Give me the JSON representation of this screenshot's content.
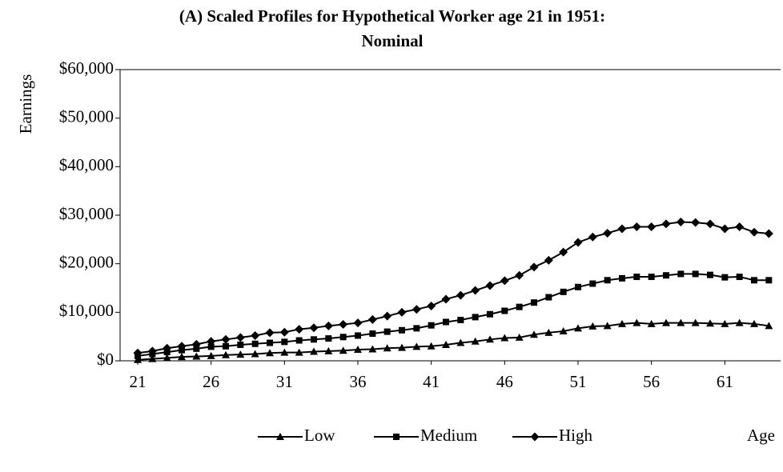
{
  "chart_data": {
    "type": "line",
    "title": "(A) Scaled Profiles for Hypothetical Worker age 21 in 1951:",
    "subtitle": "Nominal",
    "y_label": "Earnings",
    "x_label": "Age",
    "x": [
      21,
      22,
      23,
      24,
      25,
      26,
      27,
      28,
      29,
      30,
      31,
      32,
      33,
      34,
      35,
      36,
      37,
      38,
      39,
      40,
      41,
      42,
      43,
      44,
      45,
      46,
      47,
      48,
      49,
      50,
      51,
      52,
      53,
      54,
      55,
      56,
      57,
      58,
      59,
      60,
      61,
      62,
      63,
      64
    ],
    "series": [
      {
        "name": "Low",
        "color": "#000000",
        "marker": "triangle",
        "values": [
          200,
          400,
          600,
          800,
          900,
          1000,
          1200,
          1300,
          1400,
          1600,
          1700,
          1700,
          1900,
          2000,
          2100,
          2300,
          2400,
          2600,
          2700,
          2900,
          3000,
          3300,
          3700,
          4000,
          4400,
          4700,
          4800,
          5400,
          5800,
          6100,
          6700,
          7100,
          7200,
          7600,
          7800,
          7600,
          7800,
          7800,
          7800,
          7700,
          7600,
          7800,
          7600,
          7200
        ]
      },
      {
        "name": "Medium",
        "color": "#000000",
        "marker": "square",
        "values": [
          1000,
          1400,
          1800,
          2200,
          2500,
          2900,
          3000,
          3300,
          3500,
          3700,
          3900,
          4200,
          4400,
          4600,
          4900,
          5200,
          5600,
          6000,
          6300,
          6700,
          7300,
          8000,
          8400,
          9000,
          9600,
          10300,
          11100,
          12000,
          13100,
          14200,
          15200,
          15900,
          16600,
          17000,
          17300,
          17300,
          17600,
          17900,
          17900,
          17700,
          17200,
          17300,
          16600,
          16600
        ]
      },
      {
        "name": "High",
        "color": "#000000",
        "marker": "diamond",
        "values": [
          1600,
          2000,
          2600,
          3000,
          3400,
          4000,
          4400,
          4800,
          5200,
          5800,
          5900,
          6500,
          6800,
          7200,
          7500,
          7800,
          8500,
          9200,
          10000,
          10600,
          11300,
          12700,
          13500,
          14500,
          15500,
          16500,
          17600,
          19300,
          20700,
          22400,
          24400,
          25500,
          26300,
          27200,
          27600,
          27600,
          28200,
          28600,
          28500,
          28200,
          27200,
          27600,
          26500,
          26200
        ]
      }
    ],
    "xlim": [
      19.8,
      64.8
    ],
    "xticks": [
      21,
      26,
      31,
      36,
      41,
      46,
      51,
      56,
      61
    ],
    "ylim": [
      0,
      60000
    ],
    "yticks": [
      {
        "value": 0,
        "label": "$0"
      },
      {
        "value": 10000,
        "label": "$10,000"
      },
      {
        "value": 20000,
        "label": "$20,000"
      },
      {
        "value": 30000,
        "label": "$30,000"
      },
      {
        "value": 40000,
        "label": "$40,000"
      },
      {
        "value": 50000,
        "label": "$50,000"
      },
      {
        "value": 60000,
        "label": "$60,000"
      }
    ],
    "grid": false,
    "legend": "bottom"
  }
}
